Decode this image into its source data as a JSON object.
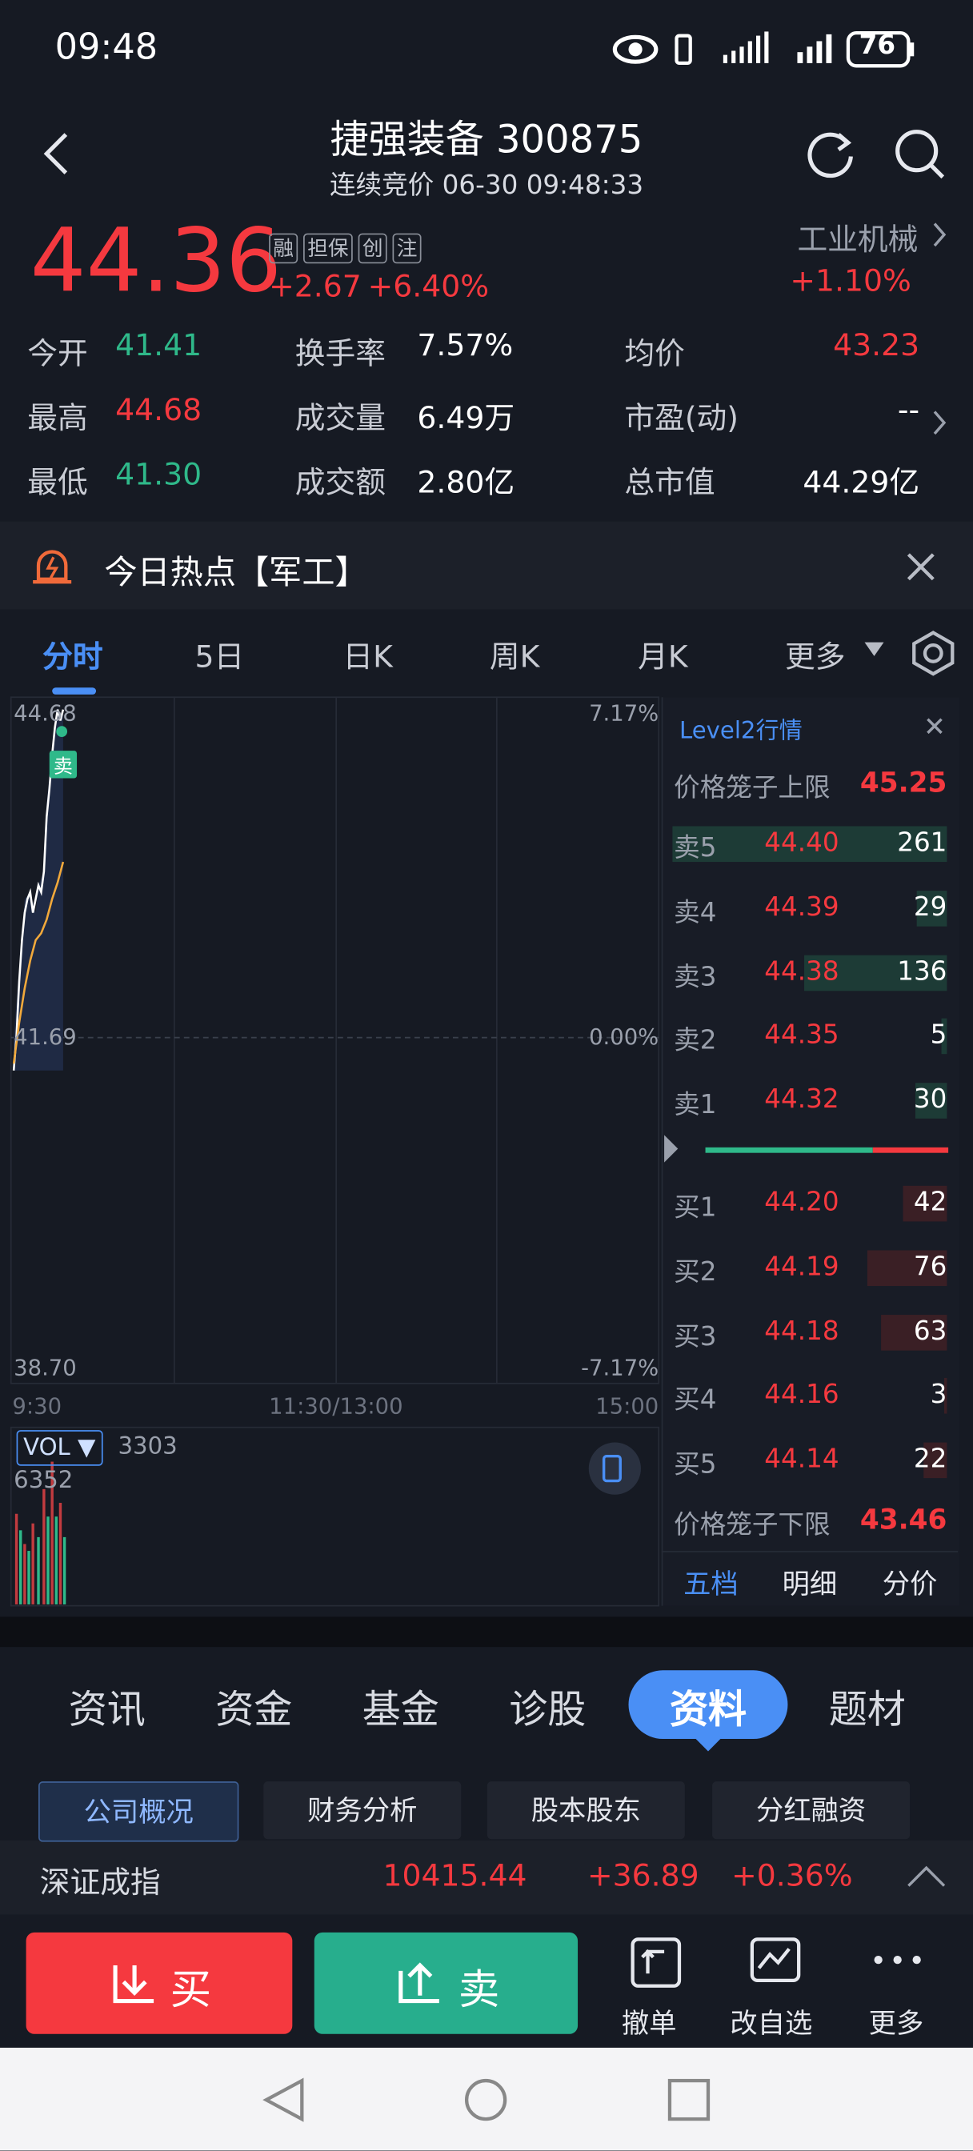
{
  "status": {
    "time": "09:48",
    "battery": "76"
  },
  "header": {
    "title": "捷强装备 300875",
    "subtitle": "连续竞价 06-30 09:48:33"
  },
  "quote": {
    "price": "44.36",
    "tags": [
      "融",
      "担保",
      "创",
      "注"
    ],
    "change": "+2.67",
    "pct": "+6.40%",
    "sector": "工业机械",
    "sector_pct": "+1.10%"
  },
  "stats": [
    {
      "label": "今开",
      "value": "41.41",
      "tone": "green"
    },
    {
      "label": "换手率",
      "value": "7.57%",
      "tone": "white"
    },
    {
      "label": "均价",
      "value": "43.23",
      "tone": "red"
    },
    {
      "label": "最高",
      "value": "44.68",
      "tone": "red"
    },
    {
      "label": "成交量",
      "value": "6.49万",
      "tone": "white"
    },
    {
      "label": "市盈(动)",
      "value": "--",
      "tone": "white"
    },
    {
      "label": "最低",
      "value": "41.30",
      "tone": "green"
    },
    {
      "label": "成交额",
      "value": "2.80亿",
      "tone": "white"
    },
    {
      "label": "总市值",
      "value": "44.29亿",
      "tone": "white"
    }
  ],
  "hot": "今日热点【军工】",
  "tabs": [
    "分时",
    "5日",
    "日K",
    "周K",
    "月K",
    "更多"
  ],
  "chart": {
    "price_labels": [
      "44.68",
      "41.69",
      "38.70"
    ],
    "pct_labels": [
      "7.17%",
      "0.00%",
      "-7.17%"
    ],
    "time_labels": [
      "9:30",
      "11:30/13:00",
      "15:00"
    ],
    "sell_tag": "卖",
    "vol_label": "VOL ▼",
    "vol_value": "3303",
    "vol_max": "6352"
  },
  "level2": {
    "title": "Level2行情",
    "upper_label": "价格笼子上限",
    "upper": "45.25",
    "asks": [
      [
        "卖5",
        "44.40",
        "261"
      ],
      [
        "卖4",
        "44.39",
        "29"
      ],
      [
        "卖3",
        "44.38",
        "136"
      ],
      [
        "卖2",
        "44.35",
        "5"
      ],
      [
        "卖1",
        "44.32",
        "30"
      ]
    ],
    "bids": [
      [
        "买1",
        "44.20",
        "42"
      ],
      [
        "买2",
        "44.19",
        "76"
      ],
      [
        "买3",
        "44.18",
        "63"
      ],
      [
        "买4",
        "44.16",
        "3"
      ],
      [
        "买5",
        "44.14",
        "22"
      ]
    ],
    "lower_label": "价格笼子下限",
    "lower": "43.46",
    "tabs": [
      "五档",
      "明细",
      "分价"
    ]
  },
  "section_tabs": [
    "资讯",
    "资金",
    "基金",
    "诊股",
    "资料",
    "题材"
  ],
  "sub_tabs": [
    "公司概况",
    "财务分析",
    "股本股东",
    "分红融资"
  ],
  "index": {
    "name": "深证成指",
    "value": "10415.44",
    "change": "+36.89",
    "pct": "+0.36%"
  },
  "actions": {
    "buy": "买",
    "sell": "卖",
    "cancel": "撤单",
    "watch": "改自选",
    "more": "更多"
  }
}
